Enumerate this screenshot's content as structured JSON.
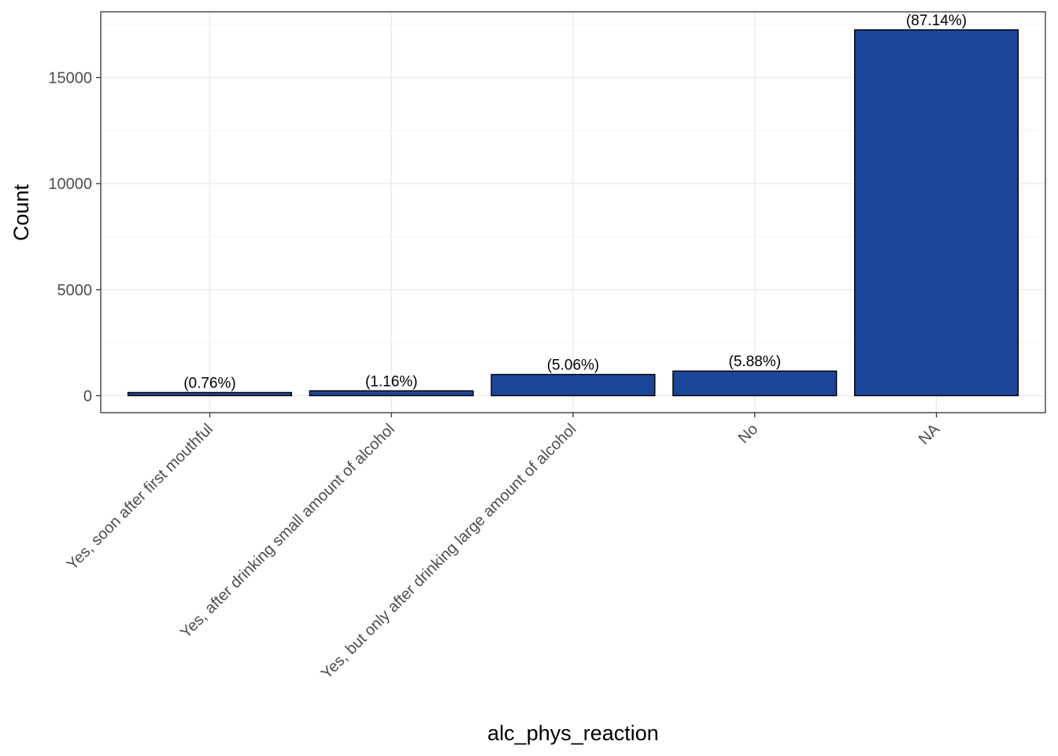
{
  "chart_data": {
    "type": "bar",
    "title": "",
    "xlabel": "alc_phys_reaction",
    "ylabel": "Count",
    "categories": [
      "Yes, soon after first mouthful",
      "Yes, after drinking small amount of alcohol",
      "Yes, but only after drinking large amount of alcohol",
      "No",
      "NA"
    ],
    "values": [
      150,
      230,
      1000,
      1160,
      17250
    ],
    "data_labels": [
      "(0.76%)",
      "(1.16%)",
      "(5.06%)",
      "(5.88%)",
      "(87.14%)"
    ],
    "ylim": [
      -800,
      18100
    ],
    "yticks": [
      0,
      5000,
      10000,
      15000
    ],
    "ytick_labels": [
      "0",
      "5000",
      "10000",
      "15000"
    ],
    "grid": true,
    "legend": "none",
    "colors": {
      "bar_fill": "#1A4599",
      "bar_stroke": "#000000",
      "grid_major": "#EBEBEB",
      "grid_minor": "#F4F4F4",
      "panel_border": "#333333"
    }
  }
}
